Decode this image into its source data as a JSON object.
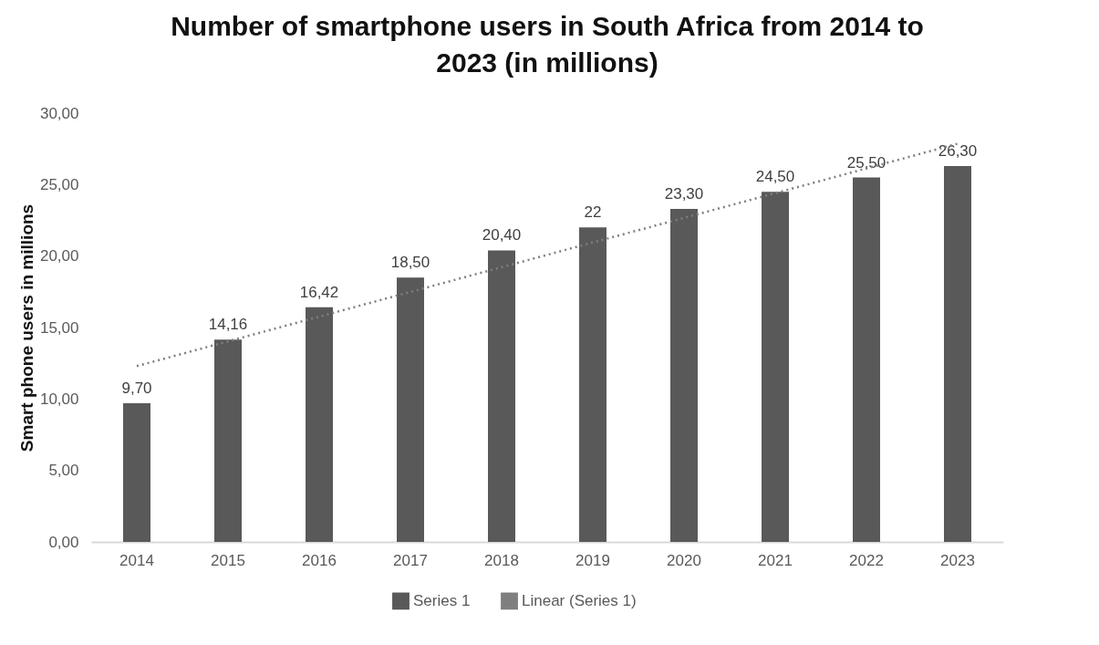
{
  "chart_data": {
    "type": "bar",
    "title": "Number of smartphone users in South Africa from 2014 to 2023 (in millions)",
    "ylabel": "Smart phone users in millions",
    "categories": [
      "2014",
      "2015",
      "2016",
      "2017",
      "2018",
      "2019",
      "2020",
      "2021",
      "2022",
      "2023"
    ],
    "series": [
      {
        "name": "Series 1",
        "color": "#595959",
        "values": [
          9.7,
          14.16,
          16.42,
          18.5,
          20.4,
          22,
          23.3,
          24.5,
          25.5,
          26.3
        ],
        "value_labels": [
          "9,70",
          "14,16",
          "16,42",
          "18,50",
          "20,40",
          "22",
          "23,30",
          "24,50",
          "25,50",
          "26,30"
        ]
      },
      {
        "name": "Linear (Series 1)",
        "type": "line",
        "color": "#7f7f7f",
        "line_style": "dotted",
        "values": [
          12.3,
          14.03,
          15.76,
          17.49,
          19.22,
          20.95,
          22.67,
          24.4,
          26.13,
          27.86
        ]
      }
    ],
    "ylim": [
      0,
      30
    ],
    "yticks": [
      {
        "value": 0,
        "label": "0,00"
      },
      {
        "value": 5,
        "label": "5,00"
      },
      {
        "value": 10,
        "label": "10,00"
      },
      {
        "value": 15,
        "label": "15,00"
      },
      {
        "value": 20,
        "label": "20,00"
      },
      {
        "value": 25,
        "label": "25,00"
      },
      {
        "value": 30,
        "label": "30,00"
      }
    ],
    "grid": false,
    "legend": "bottom"
  }
}
